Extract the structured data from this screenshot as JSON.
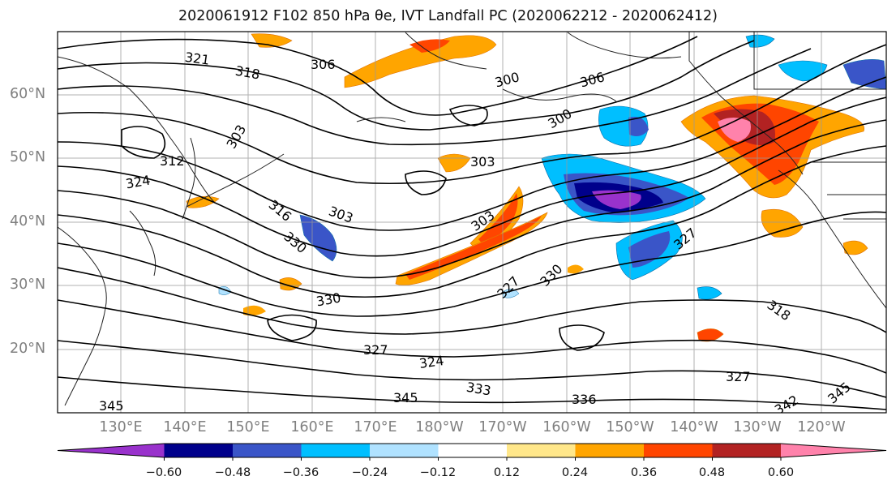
{
  "title": "2020061912 F102 850 hPa θe, IVT Landfall PC (2020062212 - 2020062412)",
  "lat_labels": [
    "60°N",
    "50°N",
    "40°N",
    "30°N",
    "20°N"
  ],
  "lon_labels": [
    "130°E",
    "140°E",
    "150°E",
    "160°E",
    "170°E",
    "180°W",
    "170°W",
    "160°W",
    "150°W",
    "140°W",
    "130°W",
    "120°W"
  ],
  "contour_labels": [
    "321",
    "318",
    "306",
    "300",
    "306",
    "303",
    "300",
    "303",
    "312",
    "324",
    "316",
    "330",
    "303",
    "303",
    "330",
    "327",
    "330",
    "327",
    "324",
    "327",
    "318",
    "327",
    "342",
    "345",
    "345",
    "345",
    "336",
    "333"
  ],
  "colorbar": {
    "tick_labels": [
      "−0.60",
      "−0.48",
      "−0.36",
      "−0.24",
      "−0.12",
      "0.12",
      "0.24",
      "0.36",
      "0.48",
      "0.60"
    ],
    "colors": [
      "#9932cc",
      "#00008b",
      "#3a55c8",
      "#00bfff",
      "#b0e2ff",
      "#ffffff",
      "#ffe78a",
      "#ffa500",
      "#ff4500",
      "#b22222",
      "#ff82ab"
    ]
  }
}
